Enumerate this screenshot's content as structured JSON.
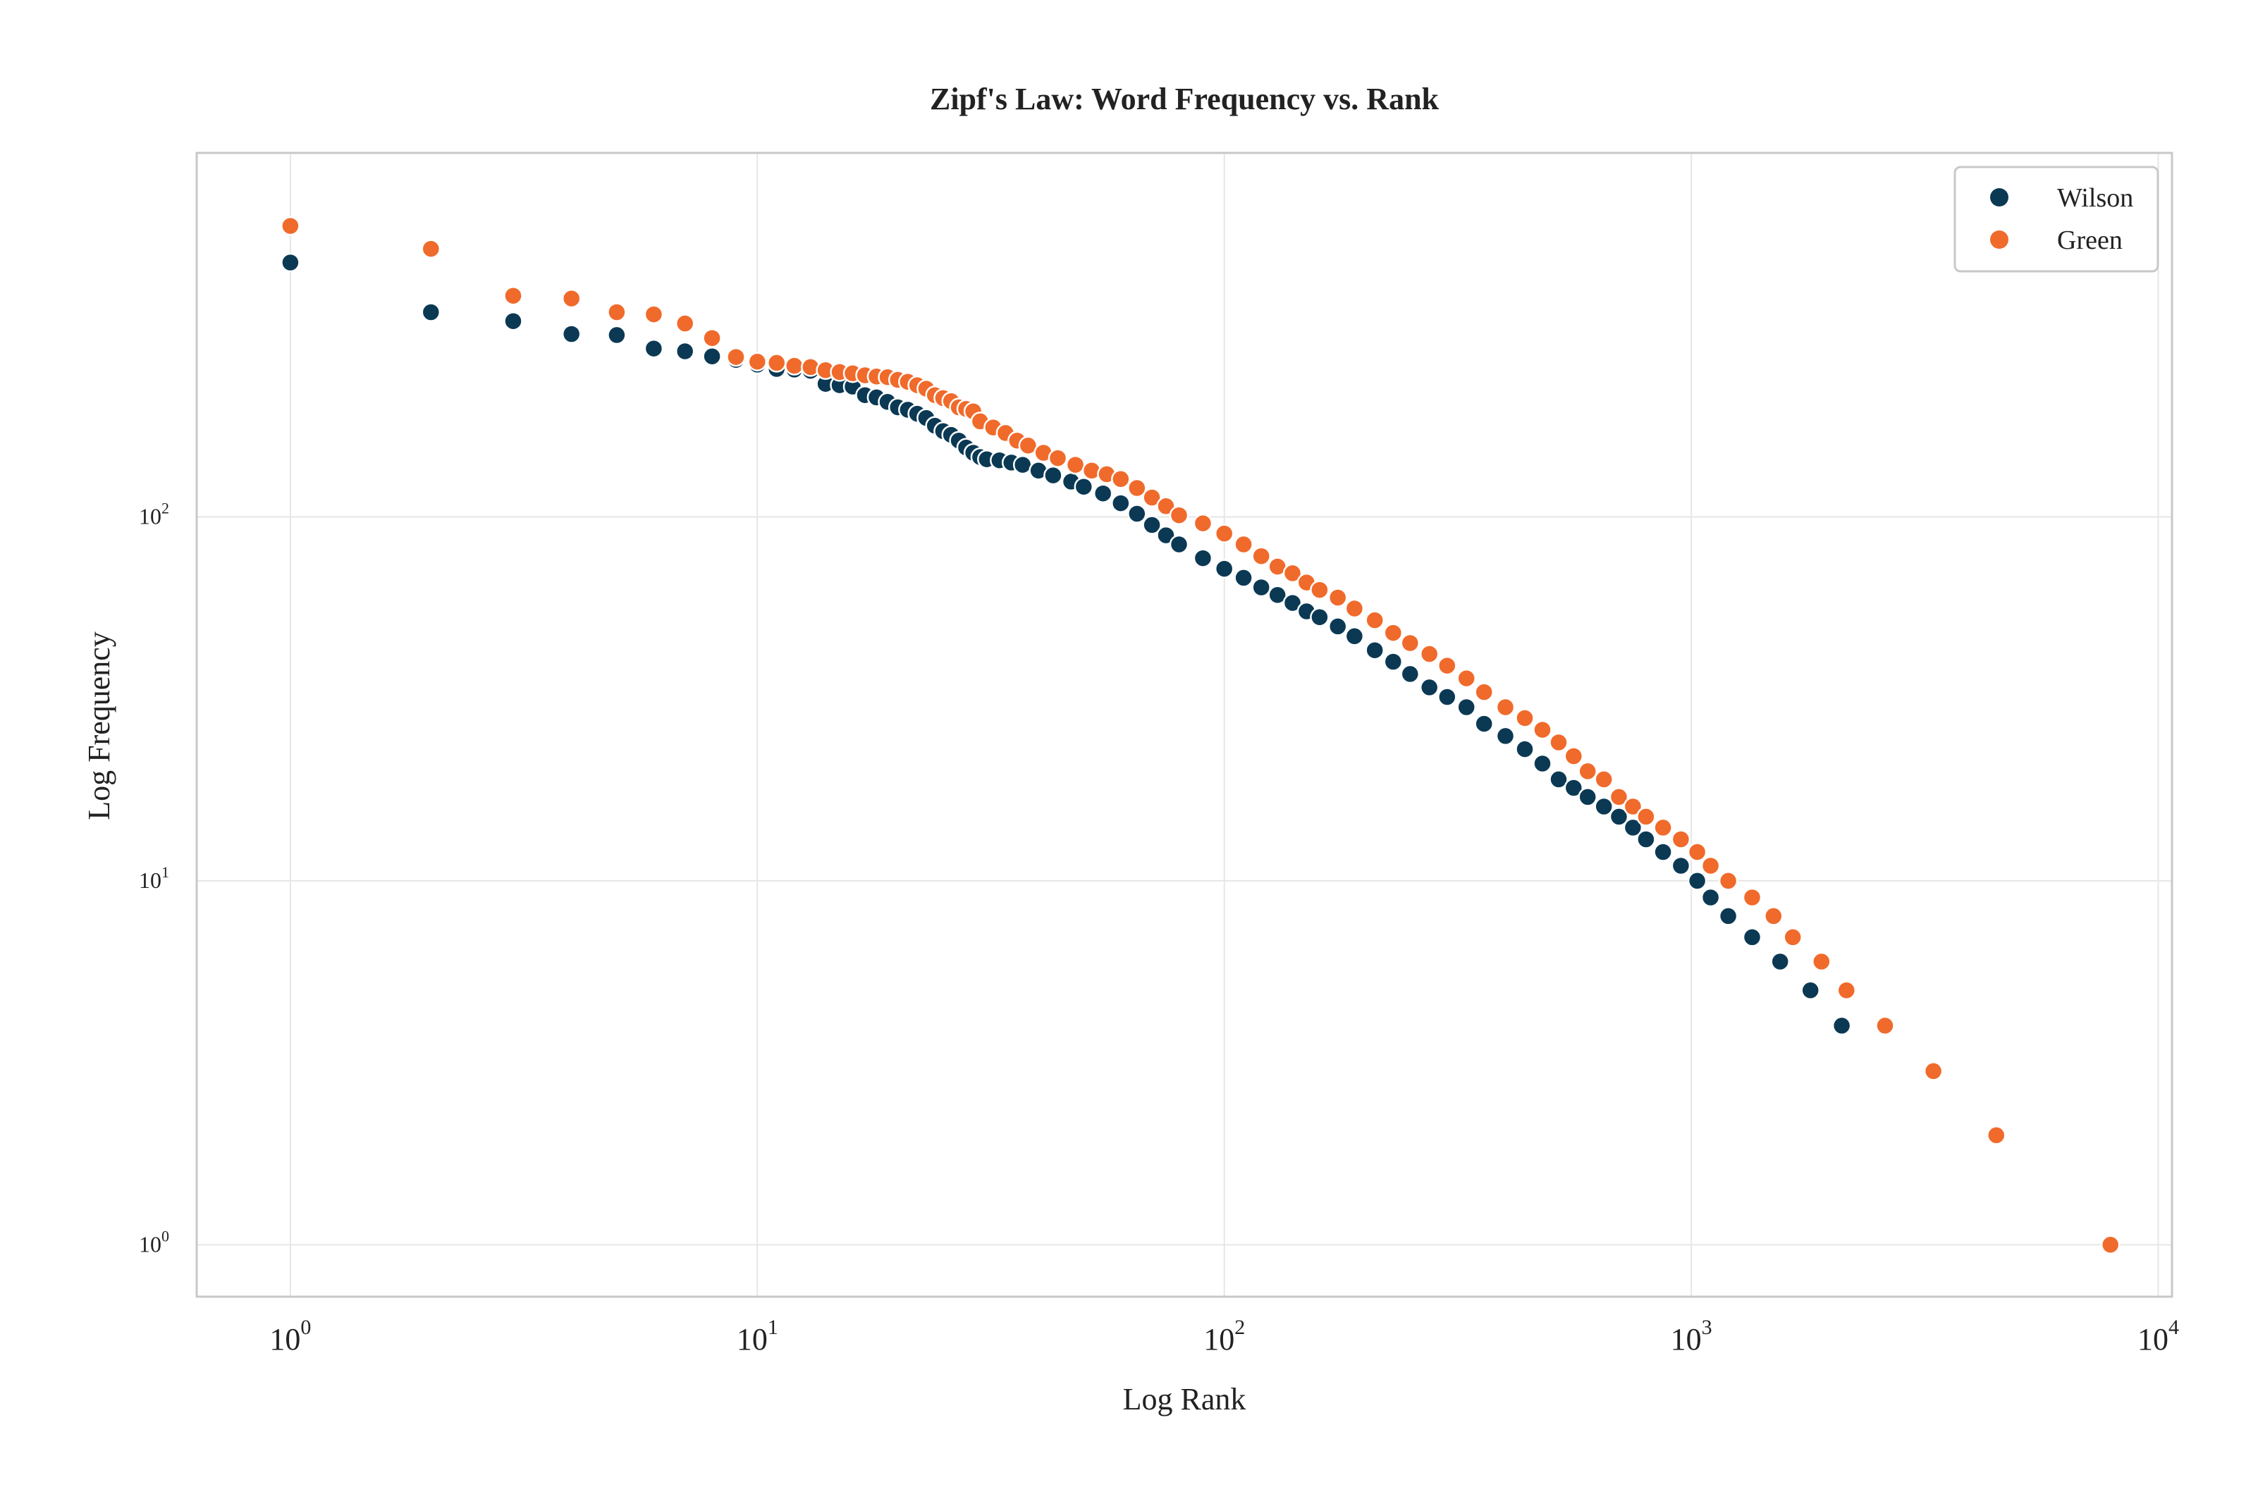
{
  "chart_data": {
    "type": "scatter",
    "title": "Zipf's Law: Word Frequency vs. Rank",
    "xlabel": "Log Rank",
    "ylabel": "Log Frequency",
    "xscale": "log",
    "yscale": "log",
    "xlim": [
      0.63,
      10700
    ],
    "ylim": [
      0.72,
      1000
    ],
    "grid": true,
    "legend_position": "top-right",
    "x_ticks": [
      {
        "value": 1,
        "base": "10",
        "exp": "0"
      },
      {
        "value": 10,
        "base": "10",
        "exp": "1"
      },
      {
        "value": 100,
        "base": "10",
        "exp": "2"
      },
      {
        "value": 1000,
        "base": "10",
        "exp": "3"
      },
      {
        "value": 10000,
        "base": "10",
        "exp": "4"
      }
    ],
    "y_ticks": [
      {
        "value": 1,
        "base": "10",
        "exp": "0"
      },
      {
        "value": 10,
        "base": "10",
        "exp": "1"
      },
      {
        "value": 100,
        "base": "10",
        "exp": "2"
      }
    ],
    "series": [
      {
        "name": "Wilson",
        "color": "#0b3954",
        "points": [
          [
            1,
            500
          ],
          [
            2,
            365
          ],
          [
            3,
            345
          ],
          [
            4,
            318
          ],
          [
            5,
            316
          ],
          [
            6,
            290
          ],
          [
            7,
            285
          ],
          [
            8,
            276
          ],
          [
            9,
            270
          ],
          [
            10,
            262
          ],
          [
            11,
            255
          ],
          [
            12,
            254
          ],
          [
            13,
            252
          ],
          [
            14,
            232
          ],
          [
            15,
            230
          ],
          [
            16,
            228
          ],
          [
            17,
            216
          ],
          [
            18,
            213
          ],
          [
            19,
            207
          ],
          [
            20,
            200
          ],
          [
            21,
            197
          ],
          [
            22,
            192
          ],
          [
            23,
            187
          ],
          [
            24,
            178
          ],
          [
            25,
            172
          ],
          [
            26,
            168
          ],
          [
            27,
            162
          ],
          [
            28,
            155
          ],
          [
            29,
            150
          ],
          [
            30,
            146
          ],
          [
            31,
            144
          ],
          [
            33,
            143
          ],
          [
            35,
            141
          ],
          [
            37,
            139
          ],
          [
            40,
            134
          ],
          [
            43,
            130
          ],
          [
            47,
            125
          ],
          [
            50,
            121
          ],
          [
            55,
            116
          ],
          [
            60,
            109
          ],
          [
            65,
            102
          ],
          [
            70,
            95
          ],
          [
            75,
            89
          ],
          [
            80,
            84
          ],
          [
            90,
            77
          ],
          [
            100,
            72
          ],
          [
            110,
            68
          ],
          [
            120,
            64
          ],
          [
            130,
            61
          ],
          [
            140,
            58
          ],
          [
            150,
            55
          ],
          [
            160,
            53
          ],
          [
            175,
            50
          ],
          [
            190,
            47
          ],
          [
            210,
            43
          ],
          [
            230,
            40
          ],
          [
            250,
            37
          ],
          [
            275,
            34
          ],
          [
            300,
            32
          ],
          [
            330,
            30
          ],
          [
            360,
            27
          ],
          [
            400,
            25
          ],
          [
            440,
            23
          ],
          [
            480,
            21
          ],
          [
            520,
            19
          ],
          [
            560,
            18
          ],
          [
            600,
            17
          ],
          [
            650,
            16
          ],
          [
            700,
            15
          ],
          [
            750,
            14
          ],
          [
            800,
            13
          ],
          [
            870,
            12
          ],
          [
            950,
            11
          ],
          [
            1030,
            10
          ],
          [
            1100,
            9
          ],
          [
            1200,
            8
          ],
          [
            1350,
            7
          ],
          [
            1550,
            6
          ],
          [
            1800,
            5
          ],
          [
            2100,
            4
          ]
        ]
      },
      {
        "name": "Green",
        "color": "#f06a2b",
        "points": [
          [
            1,
            630
          ],
          [
            2,
            545
          ],
          [
            3,
            405
          ],
          [
            4,
            398
          ],
          [
            5,
            365
          ],
          [
            6,
            360
          ],
          [
            7,
            340
          ],
          [
            8,
            310
          ],
          [
            9,
            275
          ],
          [
            10,
            267
          ],
          [
            11,
            265
          ],
          [
            12,
            260
          ],
          [
            13,
            258
          ],
          [
            14,
            253
          ],
          [
            15,
            250
          ],
          [
            16,
            248
          ],
          [
            17,
            245
          ],
          [
            18,
            243
          ],
          [
            19,
            242
          ],
          [
            20,
            238
          ],
          [
            21,
            235
          ],
          [
            22,
            230
          ],
          [
            23,
            225
          ],
          [
            24,
            216
          ],
          [
            25,
            212
          ],
          [
            26,
            208
          ],
          [
            27,
            200
          ],
          [
            28,
            198
          ],
          [
            29,
            195
          ],
          [
            30,
            183
          ],
          [
            32,
            176
          ],
          [
            34,
            170
          ],
          [
            36,
            162
          ],
          [
            38,
            157
          ],
          [
            41,
            150
          ],
          [
            44,
            145
          ],
          [
            48,
            139
          ],
          [
            52,
            134
          ],
          [
            56,
            131
          ],
          [
            60,
            127
          ],
          [
            65,
            120
          ],
          [
            70,
            113
          ],
          [
            75,
            107
          ],
          [
            80,
            101
          ],
          [
            90,
            96
          ],
          [
            100,
            90
          ],
          [
            110,
            84
          ],
          [
            120,
            78
          ],
          [
            130,
            73
          ],
          [
            140,
            70
          ],
          [
            150,
            66
          ],
          [
            160,
            63
          ],
          [
            175,
            60
          ],
          [
            190,
            56
          ],
          [
            210,
            52
          ],
          [
            230,
            48
          ],
          [
            250,
            45
          ],
          [
            275,
            42
          ],
          [
            300,
            39
          ],
          [
            330,
            36
          ],
          [
            360,
            33
          ],
          [
            400,
            30
          ],
          [
            440,
            28
          ],
          [
            480,
            26
          ],
          [
            520,
            24
          ],
          [
            560,
            22
          ],
          [
            600,
            20
          ],
          [
            650,
            19
          ],
          [
            700,
            17
          ],
          [
            750,
            16
          ],
          [
            800,
            15
          ],
          [
            870,
            14
          ],
          [
            950,
            13
          ],
          [
            1030,
            12
          ],
          [
            1100,
            11
          ],
          [
            1200,
            10
          ],
          [
            1350,
            9
          ],
          [
            1500,
            8
          ],
          [
            1650,
            7
          ],
          [
            1900,
            6
          ],
          [
            2150,
            5
          ],
          [
            2600,
            4
          ],
          [
            3300,
            3
          ],
          [
            4500,
            2
          ],
          [
            7900,
            1
          ]
        ]
      }
    ]
  }
}
